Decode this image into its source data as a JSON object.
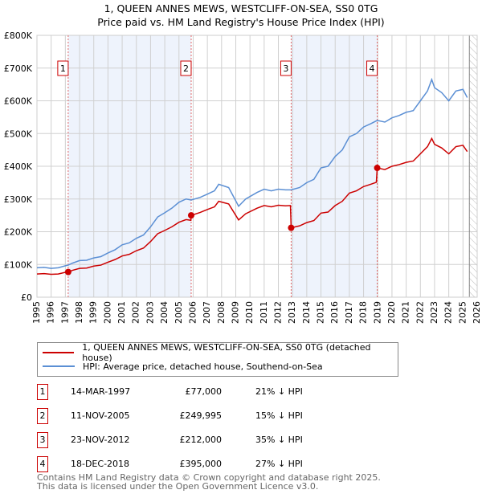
{
  "title": "1, QUEEN ANNES MEWS, WESTCLIFF-ON-SEA, SS0 0TG",
  "subtitle": "Price paid vs. HM Land Registry's House Price Index (HPI)",
  "chart_data": {
    "type": "line",
    "title": "1, QUEEN ANNES MEWS, WESTCLIFF-ON-SEA, SS0 0TG",
    "subtitle": "Price paid vs. HM Land Registry's House Price Index (HPI)",
    "xlim": [
      1995,
      2026
    ],
    "ylim": [
      0,
      800000
    ],
    "x_ticks": [
      "1995",
      "1996",
      "1997",
      "1998",
      "1999",
      "2000",
      "2001",
      "2002",
      "2003",
      "2004",
      "2005",
      "2006",
      "2007",
      "2008",
      "2009",
      "2010",
      "2011",
      "2012",
      "2013",
      "2014",
      "2015",
      "2016",
      "2017",
      "2018",
      "2019",
      "2020",
      "2021",
      "2022",
      "2023",
      "2024",
      "2025",
      "2026"
    ],
    "y_ticks": [
      {
        "v": 0,
        "label": "£0"
      },
      {
        "v": 100000,
        "label": "£100K"
      },
      {
        "v": 200000,
        "label": "£200K"
      },
      {
        "v": 300000,
        "label": "£300K"
      },
      {
        "v": 400000,
        "label": "£400K"
      },
      {
        "v": 500000,
        "label": "£500K"
      },
      {
        "v": 600000,
        "label": "£600K"
      },
      {
        "v": 700000,
        "label": "£700K"
      },
      {
        "v": 800000,
        "label": "£800K"
      }
    ],
    "grid": true,
    "series": [
      {
        "name": "1, QUEEN ANNES MEWS, WESTCLIFF-ON-SEA, SS0 0TG (detached house)",
        "color": "#cc0000",
        "points": [
          [
            1995,
            71
          ],
          [
            1995.5,
            72
          ],
          [
            1996,
            70
          ],
          [
            1996.5,
            71
          ],
          [
            1997,
            76
          ],
          [
            1997.2,
            77
          ],
          [
            1997.5,
            82
          ],
          [
            1998,
            88
          ],
          [
            1998.5,
            89
          ],
          [
            1999,
            95
          ],
          [
            1999.5,
            98
          ],
          [
            2000,
            107
          ],
          [
            2000.5,
            115
          ],
          [
            2001,
            126
          ],
          [
            2001.5,
            131
          ],
          [
            2002,
            142
          ],
          [
            2002.5,
            150
          ],
          [
            2003,
            170
          ],
          [
            2003.5,
            194
          ],
          [
            2004,
            204
          ],
          [
            2004.5,
            215
          ],
          [
            2005,
            229
          ],
          [
            2005.5,
            237
          ],
          [
            2005.84,
            235
          ],
          [
            2005.86,
            250
          ],
          [
            2006.5,
            259
          ],
          [
            2007,
            268
          ],
          [
            2007.5,
            276
          ],
          [
            2007.8,
            293
          ],
          [
            2008.5,
            285
          ],
          [
            2009.2,
            236
          ],
          [
            2009.7,
            255
          ],
          [
            2010.5,
            272
          ],
          [
            2011,
            280
          ],
          [
            2011.5,
            276
          ],
          [
            2012,
            281
          ],
          [
            2012.5,
            279
          ],
          [
            2012.85,
            280
          ],
          [
            2012.9,
            212
          ],
          [
            2013.5,
            218
          ],
          [
            2014,
            228
          ],
          [
            2014.5,
            234
          ],
          [
            2015,
            257
          ],
          [
            2015.5,
            260
          ],
          [
            2016,
            280
          ],
          [
            2016.5,
            293
          ],
          [
            2017,
            318
          ],
          [
            2017.5,
            325
          ],
          [
            2018,
            338
          ],
          [
            2018.5,
            345
          ],
          [
            2018.9,
            351
          ],
          [
            2018.96,
            395
          ],
          [
            2019.5,
            390
          ],
          [
            2020,
            400
          ],
          [
            2020.5,
            405
          ],
          [
            2021,
            412
          ],
          [
            2021.5,
            416
          ],
          [
            2022,
            438
          ],
          [
            2022.5,
            460
          ],
          [
            2022.8,
            485
          ],
          [
            2023,
            467
          ],
          [
            2023.5,
            456
          ],
          [
            2024,
            438
          ],
          [
            2024.5,
            460
          ],
          [
            2025,
            464
          ],
          [
            2025.3,
            445
          ]
        ]
      },
      {
        "name": "HPI: Average price, detached house, Southend-on-Sea",
        "color": "#5b8fd4",
        "points": [
          [
            1995,
            90
          ],
          [
            1995.5,
            91
          ],
          [
            1996,
            88
          ],
          [
            1996.5,
            90
          ],
          [
            1997,
            96
          ],
          [
            1997.2,
            98
          ],
          [
            1997.5,
            104
          ],
          [
            1998,
            112
          ],
          [
            1998.5,
            113
          ],
          [
            1999,
            120
          ],
          [
            1999.5,
            124
          ],
          [
            2000,
            135
          ],
          [
            2000.5,
            145
          ],
          [
            2001,
            160
          ],
          [
            2001.5,
            166
          ],
          [
            2002,
            180
          ],
          [
            2002.5,
            190
          ],
          [
            2003,
            215
          ],
          [
            2003.5,
            245
          ],
          [
            2004,
            258
          ],
          [
            2004.5,
            272
          ],
          [
            2005,
            290
          ],
          [
            2005.5,
            300
          ],
          [
            2005.86,
            297
          ],
          [
            2006.5,
            305
          ],
          [
            2007,
            315
          ],
          [
            2007.5,
            325
          ],
          [
            2007.8,
            345
          ],
          [
            2008.5,
            335
          ],
          [
            2009.2,
            278
          ],
          [
            2009.7,
            300
          ],
          [
            2010.5,
            320
          ],
          [
            2011,
            330
          ],
          [
            2011.5,
            325
          ],
          [
            2012,
            330
          ],
          [
            2012.5,
            328
          ],
          [
            2012.9,
            328
          ],
          [
            2013.5,
            335
          ],
          [
            2014,
            350
          ],
          [
            2014.5,
            360
          ],
          [
            2015,
            395
          ],
          [
            2015.5,
            400
          ],
          [
            2016,
            430
          ],
          [
            2016.5,
            450
          ],
          [
            2017,
            490
          ],
          [
            2017.5,
            500
          ],
          [
            2018,
            520
          ],
          [
            2018.5,
            530
          ],
          [
            2018.96,
            540
          ],
          [
            2019.5,
            535
          ],
          [
            2020,
            548
          ],
          [
            2020.5,
            555
          ],
          [
            2021,
            565
          ],
          [
            2021.5,
            570
          ],
          [
            2022,
            600
          ],
          [
            2022.5,
            630
          ],
          [
            2022.8,
            665
          ],
          [
            2023,
            640
          ],
          [
            2023.5,
            625
          ],
          [
            2024,
            600
          ],
          [
            2024.5,
            630
          ],
          [
            2025,
            635
          ],
          [
            2025.3,
            610
          ]
        ]
      }
    ],
    "value_unit": "£ thousands",
    "sales": [
      {
        "id": "1",
        "x": 1997.2,
        "value": 77
      },
      {
        "id": "2",
        "x": 2005.86,
        "value": 250
      },
      {
        "id": "3",
        "x": 2012.9,
        "value": 212
      },
      {
        "id": "4",
        "x": 2018.96,
        "value": 395
      }
    ],
    "shaded_ranges": [
      [
        1997.2,
        2005.86
      ],
      [
        2012.9,
        2018.96
      ]
    ],
    "forecast_from": 2025.45
  },
  "legend": {
    "red": "1, QUEEN ANNES MEWS, WESTCLIFF-ON-SEA, SS0 0TG (detached house)",
    "blue": "HPI: Average price, detached house, Southend-on-Sea"
  },
  "table": [
    {
      "id": "1",
      "date": "14-MAR-1997",
      "price": "£77,000",
      "hpi": "21% ↓ HPI"
    },
    {
      "id": "2",
      "date": "11-NOV-2005",
      "price": "£249,995",
      "hpi": "15% ↓ HPI"
    },
    {
      "id": "3",
      "date": "23-NOV-2012",
      "price": "£212,000",
      "hpi": "35% ↓ HPI"
    },
    {
      "id": "4",
      "date": "18-DEC-2018",
      "price": "£395,000",
      "hpi": "27% ↓ HPI"
    }
  ],
  "footer": [
    "Contains HM Land Registry data © Crown copyright and database right 2025.",
    "This data is licensed under the Open Government Licence v3.0."
  ]
}
